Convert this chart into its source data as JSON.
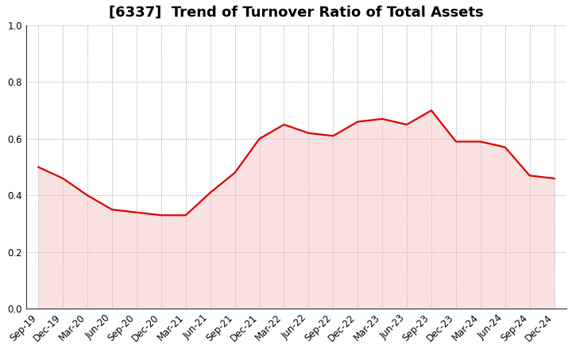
{
  "title": "[6337]  Trend of Turnover Ratio of Total Assets",
  "x_labels": [
    "Sep-19",
    "Dec-19",
    "Mar-20",
    "Jun-20",
    "Sep-20",
    "Dec-20",
    "Mar-21",
    "Jun-21",
    "Sep-21",
    "Dec-21",
    "Mar-22",
    "Jun-22",
    "Sep-22",
    "Dec-22",
    "Mar-23",
    "Jun-23",
    "Sep-23",
    "Dec-23",
    "Mar-24",
    "Jun-24",
    "Sep-24",
    "Dec-24"
  ],
  "y_values": [
    0.5,
    0.46,
    0.4,
    0.35,
    0.34,
    0.33,
    0.33,
    0.41,
    0.48,
    0.6,
    0.65,
    0.62,
    0.61,
    0.66,
    0.67,
    0.65,
    0.7,
    0.59,
    0.59,
    0.57,
    0.47,
    0.46
  ],
  "line_color": "#dd0000",
  "fill_color": "#f5c0c0",
  "ylim": [
    0.0,
    1.0
  ],
  "yticks": [
    0.0,
    0.2,
    0.4,
    0.6,
    0.8,
    1.0
  ],
  "grid_color": "#999999",
  "background_color": "#ffffff",
  "title_fontsize": 13,
  "tick_fontsize": 8.5,
  "line_width": 1.6,
  "fill_alpha": 0.45
}
